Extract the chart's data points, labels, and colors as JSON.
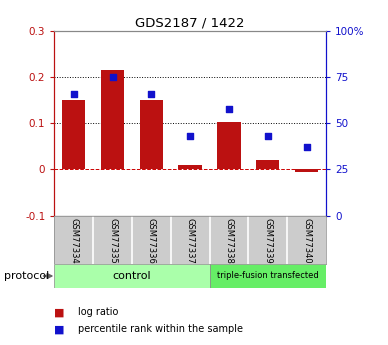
{
  "title": "GDS2187 / 1422",
  "samples": [
    "GSM77334",
    "GSM77335",
    "GSM77336",
    "GSM77337",
    "GSM77338",
    "GSM77339",
    "GSM77340"
  ],
  "log_ratio": [
    0.15,
    0.215,
    0.15,
    0.01,
    0.103,
    0.02,
    -0.005
  ],
  "percentile_rank_pct": [
    66,
    75,
    66,
    43,
    58,
    43,
    37
  ],
  "bar_color": "#bb1111",
  "dot_color": "#1111cc",
  "ylim_left": [
    -0.1,
    0.3
  ],
  "ylim_right": [
    0,
    100
  ],
  "yticks_left": [
    -0.1,
    0.0,
    0.1,
    0.2,
    0.3
  ],
  "yticks_right": [
    0,
    25,
    50,
    75,
    100
  ],
  "ytick_labels_left": [
    "-0.1",
    "0",
    "0.1",
    "0.2",
    "0.3"
  ],
  "ytick_labels_right": [
    "0",
    "25",
    "50",
    "75",
    "100%"
  ],
  "control_label": "control",
  "triple_fusion_label": "triple-fusion transfected",
  "protocol_label": "protocol",
  "legend_log_ratio": "log ratio",
  "legend_percentile": "percentile rank within the sample",
  "control_color": "#aaffaa",
  "triple_fusion_color": "#66ee66",
  "tick_label_area_color": "#cccccc",
  "background_color": "#ffffff"
}
